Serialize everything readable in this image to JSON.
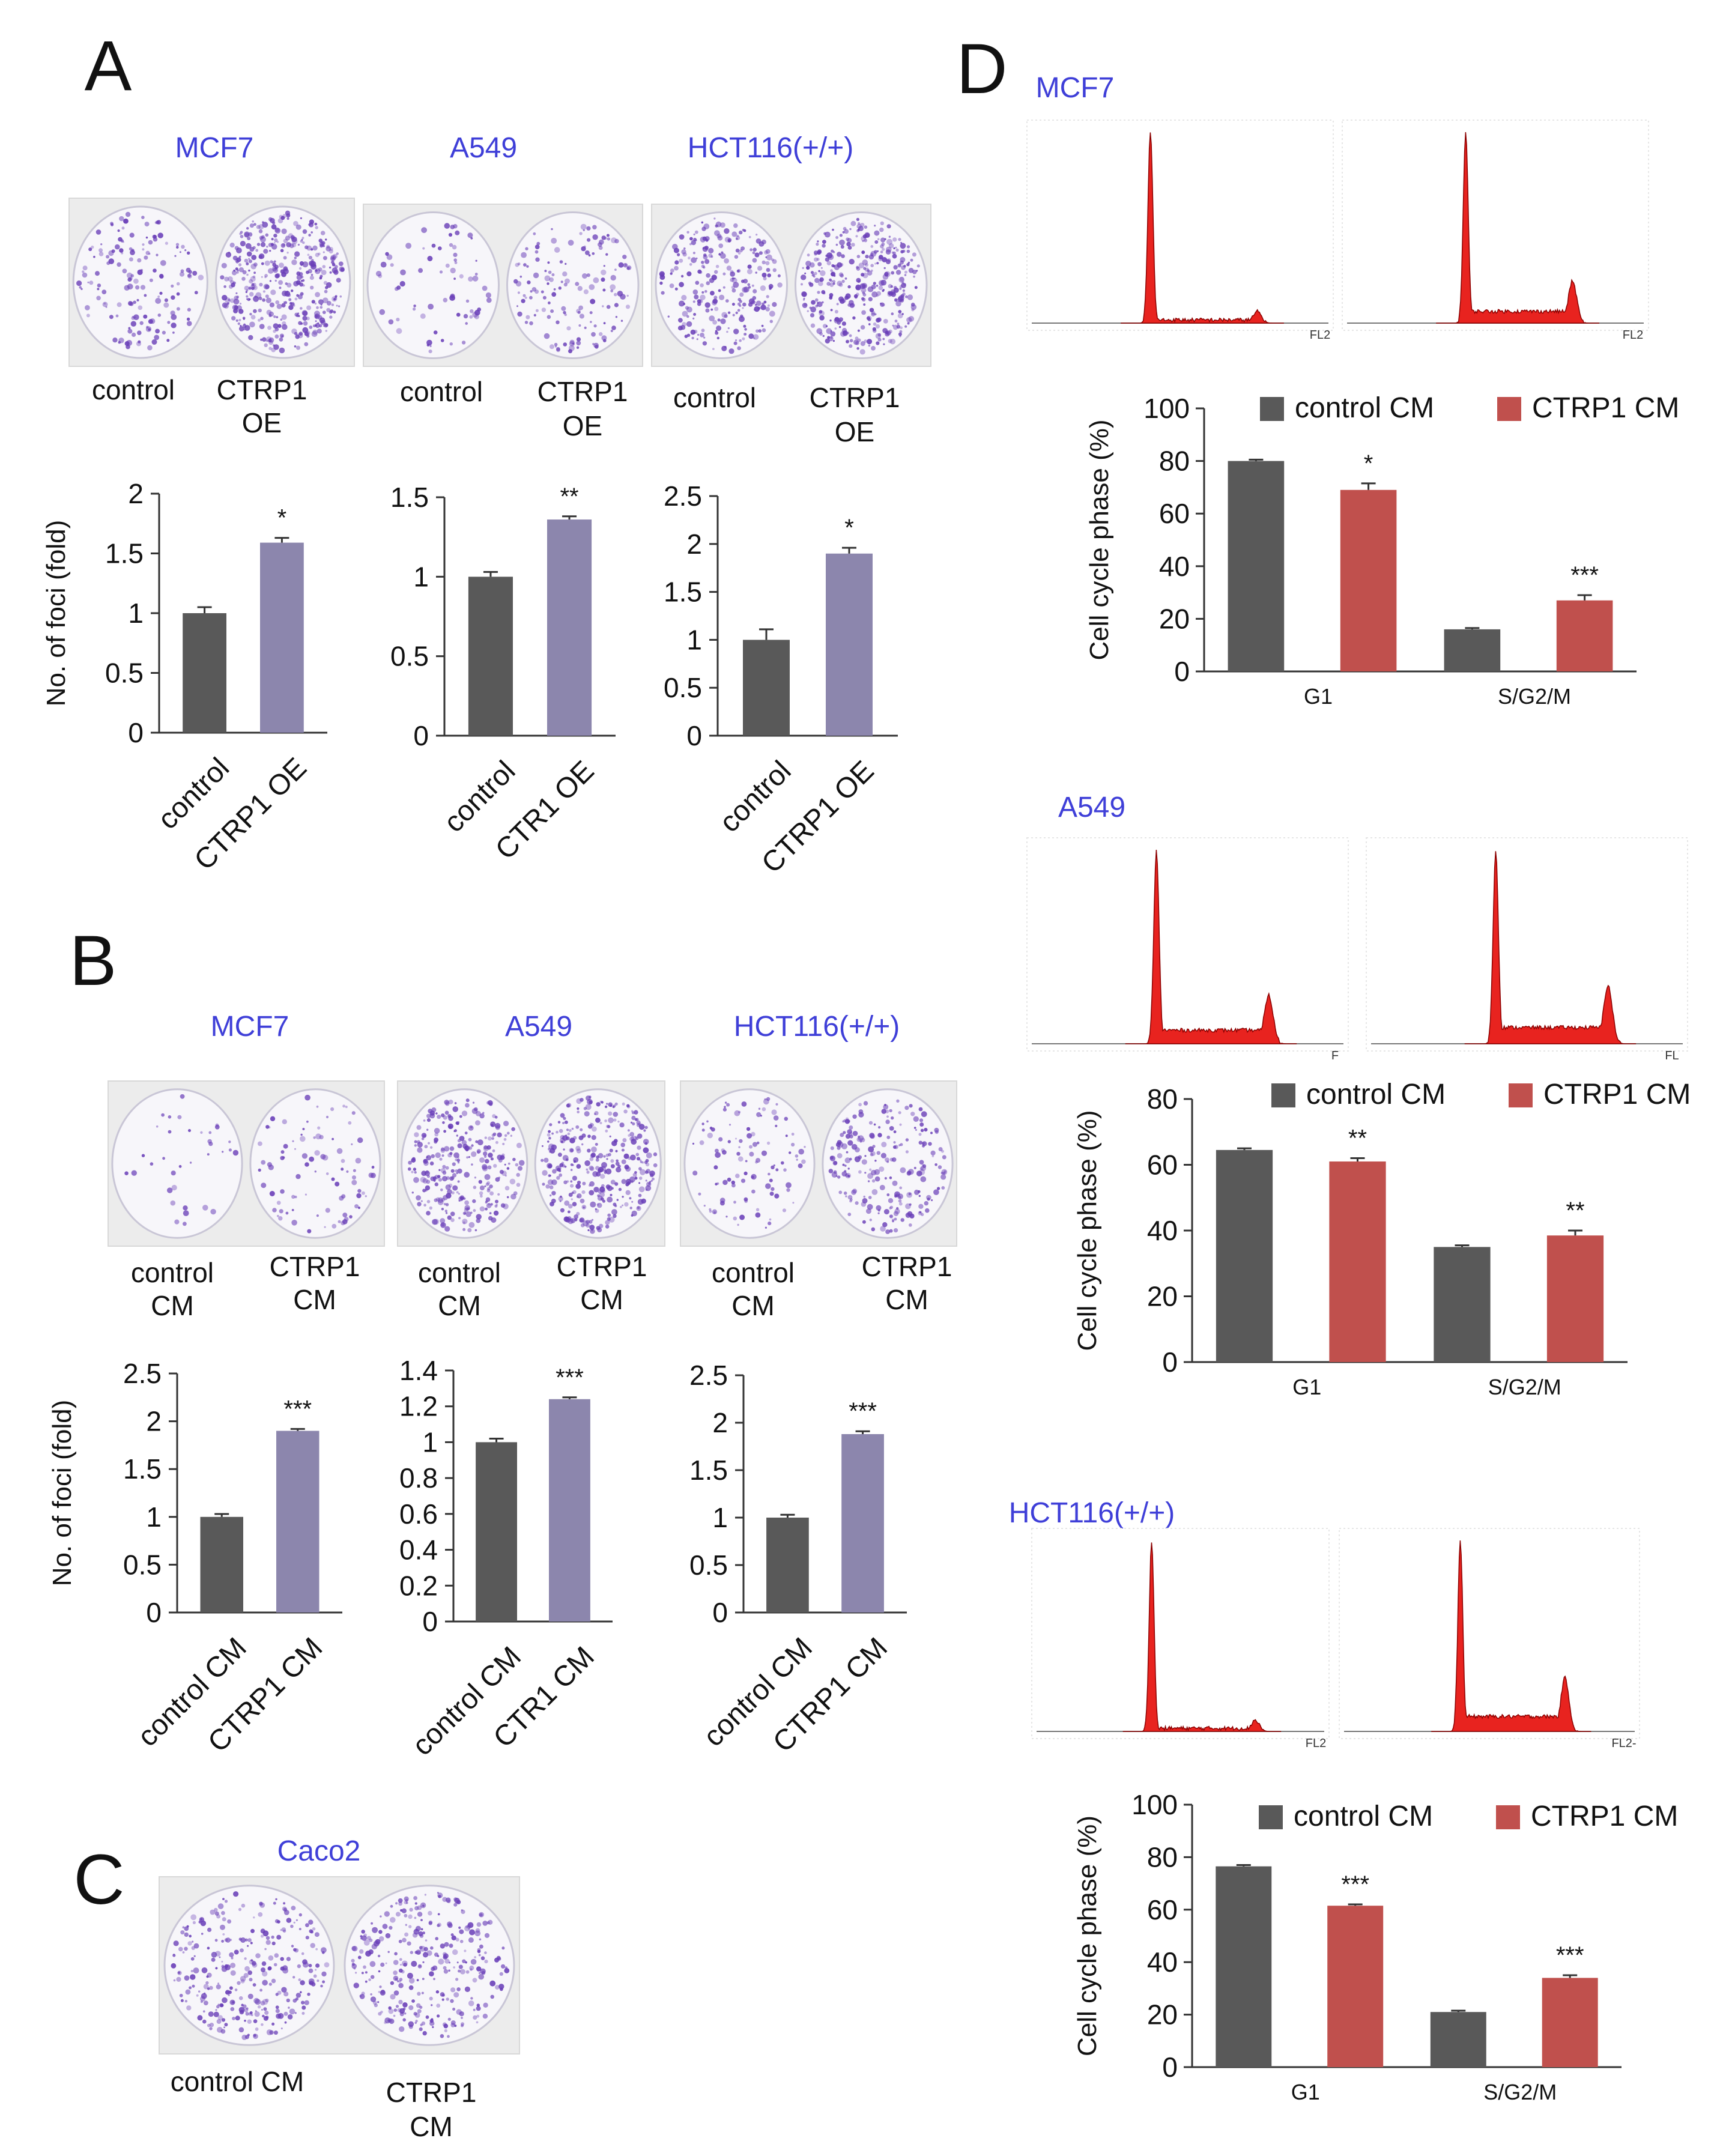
{
  "figure": {
    "panels": {
      "A": "A",
      "B": "B",
      "C": "C",
      "D": "D"
    },
    "colors": {
      "dark_bar": "#595959",
      "purple_bar": "#8c86ad",
      "red_bar": "#c0504d",
      "histogram": "#e8231f",
      "title_blue": "#3f3fd8",
      "colony_stain": "#6a3fb8"
    },
    "panel_a": {
      "cells": [
        "MCF7",
        "A549",
        "HCT116(+/+)"
      ],
      "plate_labels": [
        {
          "left": "control",
          "right_l1": "CTRP1",
          "right_l2": "OE"
        },
        {
          "left": "control",
          "right_l1": "CTRP1",
          "right_l2": "OE"
        },
        {
          "left": "control",
          "right_l1": "CTRP1",
          "right_l2": "OE"
        }
      ]
    },
    "panel_b": {
      "cells": [
        "MCF7",
        "A549",
        "HCT116(+/+)"
      ],
      "plate_labels": [
        {
          "left_l1": "control",
          "left_l2": "CM",
          "right_l1": "CTRP1",
          "right_l2": "CM"
        },
        {
          "left_l1": "control",
          "left_l2": "CM",
          "right_l1": "CTRP1",
          "right_l2": "CM"
        },
        {
          "left_l1": "control",
          "left_l2": "CM",
          "right_l1": "CTRP1",
          "right_l2": "CM"
        }
      ]
    },
    "panel_c": {
      "cell": "Caco2",
      "left_label": "control CM",
      "right_l1": "CTRP1",
      "right_l2": "CM"
    },
    "panel_d": {
      "cells": [
        "MCF7",
        "A549",
        "HCT116(+/+)"
      ],
      "flow_axis_labels": [
        {
          "left": "FL2",
          "right": "FL2"
        },
        {
          "left": "F",
          "right": "FL"
        },
        {
          "left": "FL2",
          "right": "FL2-"
        }
      ]
    }
  },
  "chart_data": [
    {
      "id": "A1",
      "type": "bar",
      "categories": [
        "control",
        "CTRP1 OE"
      ],
      "values": [
        1.0,
        1.59
      ],
      "errors": [
        0.05,
        0.04
      ],
      "significance": [
        "",
        "*"
      ],
      "ylabel": "No. of foci (fold)",
      "ylim": [
        0,
        2
      ],
      "yticks": [
        "0",
        "0.5",
        "1",
        "1.5",
        "2"
      ]
    },
    {
      "id": "A2",
      "type": "bar",
      "categories": [
        "control",
        "CTR1 OE"
      ],
      "values": [
        1.0,
        1.36
      ],
      "errors": [
        0.03,
        0.02
      ],
      "significance": [
        "",
        "**"
      ],
      "ylabel": "",
      "ylim": [
        0,
        1.5
      ],
      "yticks": [
        "0",
        "0.5",
        "1",
        "1.5"
      ]
    },
    {
      "id": "A3",
      "type": "bar",
      "categories": [
        "control",
        "CTRP1 OE"
      ],
      "values": [
        1.0,
        1.9
      ],
      "errors": [
        0.11,
        0.06
      ],
      "significance": [
        "",
        "*"
      ],
      "ylabel": "",
      "ylim": [
        0,
        2.5
      ],
      "yticks": [
        "0",
        "0.5",
        "1",
        "1.5",
        "2",
        "2.5"
      ]
    },
    {
      "id": "B1",
      "type": "bar",
      "categories": [
        "control CM",
        "CTRP1 CM"
      ],
      "values": [
        1.0,
        1.9
      ],
      "errors": [
        0.03,
        0.02
      ],
      "significance": [
        "",
        "***"
      ],
      "ylabel": "No. of foci (fold)",
      "ylim": [
        0,
        2.5
      ],
      "yticks": [
        "0",
        "0.5",
        "1",
        "1.5",
        "2",
        "2.5"
      ]
    },
    {
      "id": "B2",
      "type": "bar",
      "categories": [
        "control CM",
        "CTR1 CM"
      ],
      "values": [
        1.0,
        1.24
      ],
      "errors": [
        0.02,
        0.01
      ],
      "significance": [
        "",
        "***"
      ],
      "ylabel": "",
      "ylim": [
        0,
        1.4
      ],
      "yticks": [
        "0",
        "0.2",
        "0.4",
        "0.6",
        "0.8",
        "1",
        "1.2",
        "1.4"
      ]
    },
    {
      "id": "B3",
      "type": "bar",
      "categories": [
        "control CM",
        "CTRP1 CM"
      ],
      "values": [
        1.0,
        1.88
      ],
      "errors": [
        0.03,
        0.03
      ],
      "significance": [
        "",
        "***"
      ],
      "ylabel": "",
      "ylim": [
        0,
        2.5
      ],
      "yticks": [
        "0",
        "0.5",
        "1",
        "1.5",
        "2",
        "2.5"
      ]
    },
    {
      "id": "D1",
      "type": "bar",
      "categories": [
        "G1",
        "S/G2/M"
      ],
      "series": [
        {
          "name": "control CM",
          "values": [
            80,
            16
          ],
          "errors": [
            0.5,
            0.5
          ]
        },
        {
          "name": "CTRP1 CM",
          "values": [
            69,
            27
          ],
          "errors": [
            2.5,
            2
          ]
        }
      ],
      "significance": {
        "CTRP1 CM": [
          "*",
          "***"
        ]
      },
      "ylabel": "Cell cycle phase (%)",
      "ylim": [
        0,
        100
      ],
      "yticks": [
        "0",
        "20",
        "40",
        "60",
        "80",
        "100"
      ]
    },
    {
      "id": "D2",
      "type": "bar",
      "categories": [
        "G1",
        "S/G2/M"
      ],
      "series": [
        {
          "name": "control CM",
          "values": [
            64.5,
            35
          ],
          "errors": [
            0.5,
            0.5
          ]
        },
        {
          "name": "CTRP1 CM",
          "values": [
            61,
            38.5
          ],
          "errors": [
            1,
            1.5
          ]
        }
      ],
      "significance": {
        "CTRP1 CM": [
          "**",
          "**"
        ]
      },
      "ylabel": "Cell cycle phase (%)",
      "ylim": [
        0,
        80
      ],
      "yticks": [
        "0",
        "20",
        "40",
        "60",
        "80"
      ]
    },
    {
      "id": "D3",
      "type": "bar",
      "categories": [
        "G1",
        "S/G2/M"
      ],
      "series": [
        {
          "name": "control CM",
          "values": [
            76.5,
            21
          ],
          "errors": [
            0.5,
            0.5
          ]
        },
        {
          "name": "CTRP1 CM",
          "values": [
            61.5,
            34
          ],
          "errors": [
            0.5,
            1
          ]
        }
      ],
      "significance": {
        "CTRP1 CM": [
          "***",
          "***"
        ]
      },
      "ylabel": "Cell cycle phase (%)",
      "ylim": [
        0,
        100
      ],
      "yticks": [
        "0",
        "20",
        "40",
        "60",
        "80",
        "100"
      ]
    }
  ]
}
